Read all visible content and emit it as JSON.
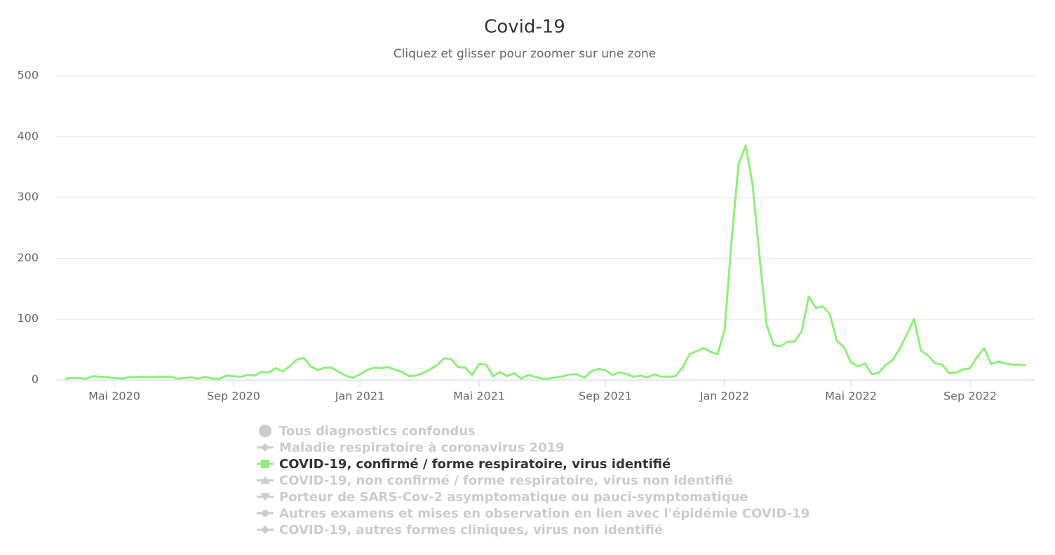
{
  "chart_data": {
    "type": "line",
    "title": "Covid-19",
    "subtitle": "Cliquez et glisser pour zoomer sur une zone",
    "categories": [
      null,
      null,
      null,
      null,
      null,
      null,
      null,
      "Mai 2020",
      null,
      null,
      null,
      null,
      null,
      null,
      null,
      null,
      null,
      null,
      null,
      null,
      null,
      null,
      null,
      null,
      "Sep 2020",
      null,
      null,
      null,
      null,
      null,
      null,
      null,
      null,
      null,
      null,
      null,
      null,
      null,
      null,
      null,
      null,
      null,
      "Jan 2021",
      null,
      null,
      null,
      null,
      null,
      null,
      null,
      null,
      null,
      null,
      null,
      null,
      null,
      null,
      null,
      null,
      "Mai 2021",
      null,
      null,
      null,
      null,
      null,
      null,
      null,
      null,
      null,
      null,
      null,
      null,
      null,
      null,
      null,
      null,
      null,
      "Sep 2021",
      null,
      null,
      null,
      null,
      null,
      null,
      null,
      null,
      null,
      null,
      null,
      null,
      null,
      null,
      null,
      null,
      "Jan 2022",
      null,
      null,
      null,
      null,
      null,
      null,
      null,
      null,
      null,
      null,
      null,
      null,
      null,
      null,
      null,
      null,
      null,
      "Mai 2022",
      null,
      null,
      null,
      null,
      null,
      null,
      null,
      null,
      null,
      null,
      null,
      null,
      null,
      null,
      null,
      null,
      "Sep 2022",
      null,
      null,
      null,
      null,
      null,
      null,
      null,
      null
    ],
    "series": [
      {
        "name": "Tous diagnostics confondus",
        "marker": "circle",
        "visible": false
      },
      {
        "name": "Maladie respiratoire à coronavirus 2019",
        "marker": "diamond",
        "visible": false
      },
      {
        "name": "COVID-19, confirmé / forme respiratoire, virus identifié",
        "marker": "square",
        "visible": true,
        "color": "#90ed7d",
        "values": [
          2,
          3,
          3,
          2,
          6,
          5,
          4,
          3,
          2,
          4,
          4,
          5,
          4,
          5,
          5,
          5,
          2,
          3,
          4,
          2,
          5,
          2,
          2,
          7,
          6,
          5,
          8,
          7,
          13,
          12,
          19,
          14,
          22,
          33,
          36,
          22,
          16,
          20,
          20,
          13,
          7,
          3,
          9,
          16,
          20,
          19,
          21,
          17,
          13,
          6,
          7,
          11,
          17,
          24,
          35,
          34,
          21,
          20,
          8,
          26,
          25,
          6,
          13,
          6,
          11,
          2,
          8,
          5,
          2,
          2,
          4,
          6,
          9,
          9,
          3,
          14,
          18,
          16,
          8,
          12,
          10,
          5,
          7,
          4,
          9,
          5,
          5,
          6,
          20,
          42,
          47,
          52,
          46,
          42,
          82,
          230,
          355,
          385,
          320,
          200,
          90,
          57,
          55,
          63,
          63,
          80,
          137,
          118,
          121,
          108,
          64,
          54,
          29,
          22,
          27,
          9,
          12,
          25,
          33,
          52,
          75,
          100,
          48,
          40,
          27,
          25,
          11,
          12,
          17,
          19,
          38,
          52,
          26,
          30,
          27,
          25,
          25,
          24
        ]
      },
      {
        "name": "COVID-19, non confirmé / forme respiratoire, virus non identifié",
        "marker": "triangle",
        "visible": false
      },
      {
        "name": "Porteur de SARS-Cov-2 asymptomatique ou pauci-symptomatique",
        "marker": "triangle-down",
        "visible": false
      },
      {
        "name": "Autres examens et mises en observation en lien avec l'épidémie COVID-19",
        "marker": "circle",
        "visible": false
      },
      {
        "name": "COVID-19, autres formes cliniques, virus non identifié",
        "marker": "diamond",
        "visible": false
      }
    ],
    "hidden_color": "#cccccc",
    "ylim": [
      0,
      500
    ],
    "yticks": [
      0,
      100,
      200,
      300,
      400,
      500
    ],
    "grid": true
  }
}
